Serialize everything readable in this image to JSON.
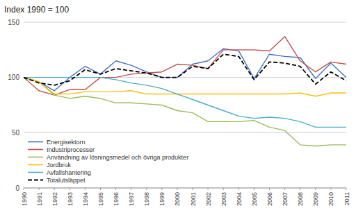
{
  "chart_data": {
    "type": "line",
    "title": "Index 1990 = 100",
    "x": [
      1990,
      1991,
      1992,
      1993,
      1994,
      1995,
      1996,
      1997,
      1998,
      1999,
      2000,
      2001,
      2002,
      2003,
      2004,
      2005,
      2006,
      2007,
      2008,
      2009,
      2010,
      2011
    ],
    "xlim": [
      1990,
      2011
    ],
    "xticks": [
      1990,
      1991,
      1992,
      1993,
      1994,
      1995,
      1996,
      1997,
      1998,
      1999,
      2000,
      2001,
      2002,
      2003,
      2004,
      2005,
      2006,
      2007,
      2008,
      2009,
      2010,
      2011
    ],
    "ylim": [
      0,
      150
    ],
    "yticks": [
      0,
      50,
      100,
      150
    ],
    "grid": true,
    "legend": "lower left",
    "series": [
      {
        "name": "Energisektorn",
        "color": "#4472C4",
        "values": [
          100,
          96,
          88,
          100,
          110,
          103,
          115,
          111,
          105,
          100,
          100,
          112,
          115,
          126,
          124,
          99,
          121,
          119,
          118,
          99,
          113,
          100
        ]
      },
      {
        "name": "Industriprocesser",
        "color": "#C0504D",
        "values": [
          100,
          88,
          84,
          89,
          89,
          100,
          100,
          103,
          104,
          105,
          112,
          111,
          108,
          125,
          125,
          125,
          124,
          137,
          115,
          105,
          114,
          112
        ]
      },
      {
        "name": "Användning av lösningsmedel och övriga produkter",
        "color": "#9BBB59",
        "values": [
          100,
          96,
          84,
          81,
          83,
          81,
          77,
          77,
          76,
          75,
          70,
          68,
          60,
          60,
          60,
          61,
          55,
          52,
          39,
          38,
          39,
          39
        ]
      },
      {
        "name": "Jordbruk",
        "color": "#FABF09",
        "values": [
          100,
          96,
          85,
          85,
          87,
          87,
          87,
          88,
          85,
          85,
          85,
          85,
          85,
          85,
          85,
          85,
          85,
          85,
          86,
          83,
          86,
          86
        ]
      },
      {
        "name": "Avfallshantering",
        "color": "#4BACC6",
        "values": [
          100,
          100,
          100,
          100,
          100,
          100,
          98,
          95,
          93,
          90,
          85,
          80,
          75,
          70,
          65,
          63,
          64,
          63,
          60,
          55,
          55,
          55
        ]
      },
      {
        "name": "Totalutsläppet",
        "color": "#000000",
        "line_style": "dashed",
        "values": [
          100,
          95,
          93,
          97,
          107,
          103,
          108,
          106,
          104,
          100,
          100,
          110,
          108,
          121,
          119,
          98,
          114,
          113,
          110,
          94,
          105,
          97
        ]
      }
    ]
  }
}
